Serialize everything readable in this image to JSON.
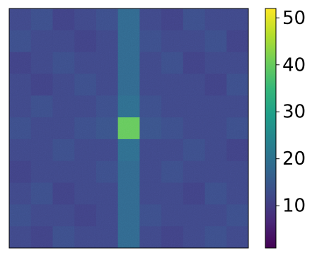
{
  "chart_data": {
    "type": "heatmap",
    "colormap": "viridis",
    "values": [
      [
        12,
        13,
        11,
        12,
        13,
        18,
        12,
        11,
        13,
        12,
        12
      ],
      [
        13,
        12,
        12,
        11,
        12,
        18,
        13,
        12,
        12,
        13,
        11
      ],
      [
        11,
        12,
        13,
        12,
        12,
        18,
        12,
        13,
        11,
        12,
        12
      ],
      [
        12,
        11,
        12,
        13,
        12,
        18,
        12,
        12,
        12,
        11,
        13
      ],
      [
        12,
        13,
        12,
        12,
        13,
        19,
        13,
        12,
        12,
        12,
        12
      ],
      [
        13,
        12,
        12,
        13,
        14,
        40,
        14,
        13,
        12,
        12,
        13
      ],
      [
        12,
        12,
        13,
        12,
        12,
        19,
        12,
        12,
        13,
        12,
        11
      ],
      [
        11,
        12,
        12,
        12,
        13,
        18,
        12,
        13,
        12,
        12,
        12
      ],
      [
        12,
        13,
        11,
        12,
        12,
        18,
        12,
        12,
        11,
        13,
        12
      ],
      [
        13,
        12,
        12,
        11,
        12,
        18,
        13,
        12,
        12,
        12,
        13
      ],
      [
        12,
        11,
        13,
        12,
        12,
        18,
        12,
        11,
        12,
        13,
        12
      ]
    ],
    "clim": [
      1,
      52
    ],
    "cticks": [
      10,
      20,
      30,
      40,
      50
    ]
  }
}
